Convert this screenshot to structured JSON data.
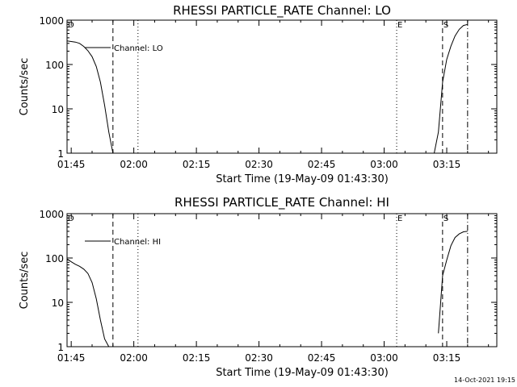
{
  "chart_data": [
    {
      "type": "line",
      "title": "RHESSI PARTICLE_RATE Channel: LO",
      "xlabel": "Start Time (19-May-09 01:43:30)",
      "ylabel": "Counts/sec",
      "yscale": "log",
      "ylim": [
        1,
        1000
      ],
      "xlim": [
        "01:44",
        "03:27"
      ],
      "xtick_labels": [
        "01:45",
        "02:00",
        "02:15",
        "02:30",
        "02:45",
        "03:00",
        "03:15"
      ],
      "ytick_labels": [
        "1",
        "10",
        "100",
        "1000"
      ],
      "legend": {
        "label": "Channel: LO",
        "placement": "top-left"
      },
      "grid": false,
      "series": [
        {
          "name": "Channel: LO",
          "segments": [
            {
              "x": [
                "01:44",
                "01:46",
                "01:47",
                "01:48",
                "01:49",
                "01:50",
                "01:51",
                "01:52",
                "01:53",
                "01:54",
                "01:55"
              ],
              "y": [
                340,
                320,
                300,
                255,
                205,
                150,
                90,
                40,
                12,
                3,
                1
              ]
            },
            {
              "x": [
                "03:12",
                "03:13",
                "03:14",
                "03:15",
                "03:16",
                "03:17",
                "03:18",
                "03:19",
                "03:20"
              ],
              "y": [
                1,
                3,
                40,
                130,
                260,
                440,
                620,
                760,
                800
              ]
            }
          ]
        }
      ],
      "markers": [
        {
          "label": "D",
          "time": "01:44",
          "line": "none"
        },
        {
          "label": "",
          "time": "01:55",
          "line": "dashed"
        },
        {
          "label": "",
          "time": "02:01",
          "line": "dotted"
        },
        {
          "label": "E",
          "time": "03:03",
          "line": "dotted"
        },
        {
          "label": "S",
          "time": "03:14",
          "line": "dashed"
        },
        {
          "label": "",
          "time": "03:20",
          "line": "dash-dot"
        }
      ]
    },
    {
      "type": "line",
      "title": "RHESSI PARTICLE_RATE Channel: HI",
      "xlabel": "Start Time (19-May-09 01:43:30)",
      "ylabel": "Counts/sec",
      "yscale": "log",
      "ylim": [
        1,
        1000
      ],
      "xlim": [
        "01:44",
        "03:27"
      ],
      "xtick_labels": [
        "01:45",
        "02:00",
        "02:15",
        "02:30",
        "02:45",
        "03:00",
        "03:15"
      ],
      "ytick_labels": [
        "1",
        "10",
        "100",
        "1000"
      ],
      "legend": {
        "label": "Channel: HI",
        "placement": "top-left"
      },
      "grid": false,
      "series": [
        {
          "name": "Channel: HI",
          "segments": [
            {
              "x": [
                "01:44",
                "01:45",
                "01:46",
                "01:47",
                "01:48",
                "01:49",
                "01:50",
                "01:51",
                "01:52",
                "01:53",
                "01:54"
              ],
              "y": [
                95,
                82,
                72,
                65,
                56,
                45,
                28,
                12,
                4,
                1.5,
                1
              ]
            },
            {
              "x": [
                "03:13",
                "03:14",
                "03:15",
                "03:16",
                "03:17",
                "03:18",
                "03:19",
                "03:20"
              ],
              "y": [
                2,
                40,
                90,
                190,
                290,
                350,
                390,
                400
              ]
            }
          ]
        }
      ],
      "markers": [
        {
          "label": "D",
          "time": "01:44",
          "line": "none"
        },
        {
          "label": "",
          "time": "01:55",
          "line": "dashed"
        },
        {
          "label": "",
          "time": "02:01",
          "line": "dotted"
        },
        {
          "label": "E",
          "time": "03:03",
          "line": "dotted"
        },
        {
          "label": "S",
          "time": "03:14",
          "line": "dashed"
        },
        {
          "label": "",
          "time": "03:20",
          "line": "dash-dot"
        }
      ]
    }
  ],
  "footer": {
    "timestamp": "14-Oct-2021 19:15"
  }
}
